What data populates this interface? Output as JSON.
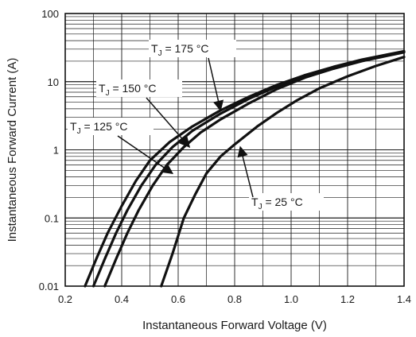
{
  "chart_data": {
    "type": "line",
    "title": "",
    "xlabel": "Instantaneous Forward Voltage (V)",
    "ylabel": "Instantaneous Forward Current (A)",
    "xlim": [
      0.2,
      1.4
    ],
    "ylim": [
      0.01,
      100
    ],
    "y_scale": "log",
    "grid": "on",
    "x_ticks": [
      "0.2",
      "0.4",
      "0.6",
      "0.8",
      "1.0",
      "1.2",
      "1.4"
    ],
    "y_ticks": [
      "0.01",
      "0.1",
      "1",
      "10",
      "100"
    ],
    "series": [
      {
        "name": "T_J = 175 °C",
        "x": [
          0.27,
          0.31,
          0.35,
          0.4,
          0.45,
          0.5,
          0.57,
          0.65,
          0.75,
          0.85,
          0.95,
          1.05,
          1.15,
          1.25,
          1.35,
          1.4
        ],
        "y": [
          0.01,
          0.025,
          0.06,
          0.15,
          0.35,
          0.7,
          1.3,
          2.2,
          3.8,
          6.0,
          9.0,
          12.5,
          16.5,
          21.0,
          25.5,
          28.0
        ]
      },
      {
        "name": "T_J = 150 °C",
        "x": [
          0.3,
          0.34,
          0.38,
          0.42,
          0.47,
          0.52,
          0.58,
          0.65,
          0.75,
          0.85,
          0.95,
          1.05,
          1.15,
          1.25,
          1.35,
          1.4
        ],
        "y": [
          0.01,
          0.025,
          0.06,
          0.13,
          0.3,
          0.6,
          1.1,
          1.9,
          3.4,
          5.6,
          8.5,
          12.0,
          16.0,
          20.5,
          25.0,
          27.5
        ]
      },
      {
        "name": "T_J = 125 °C",
        "x": [
          0.34,
          0.38,
          0.42,
          0.46,
          0.51,
          0.56,
          0.62,
          0.68,
          0.75,
          0.85,
          0.95,
          1.05,
          1.15,
          1.25,
          1.35,
          1.4
        ],
        "y": [
          0.01,
          0.025,
          0.06,
          0.13,
          0.3,
          0.6,
          1.1,
          1.8,
          2.8,
          4.8,
          7.8,
          11.5,
          15.5,
          20.0,
          24.5,
          27.0
        ]
      },
      {
        "name": "T_J = 25 °C",
        "x": [
          0.54,
          0.58,
          0.62,
          0.66,
          0.7,
          0.75,
          0.8,
          0.88,
          0.95,
          1.02,
          1.1,
          1.2,
          1.3,
          1.4
        ],
        "y": [
          0.01,
          0.03,
          0.1,
          0.22,
          0.45,
          0.8,
          1.2,
          2.2,
          3.5,
          5.3,
          8.0,
          12.0,
          17.0,
          23.0
        ]
      }
    ],
    "annotations": [
      {
        "id": "175",
        "pre": "T",
        "sub": "J",
        "post": " = 175 °C",
        "arrow_to": [
          0.75,
          3.8
        ]
      },
      {
        "id": "150",
        "pre": "T",
        "sub": "J",
        "post": " = 150 °C",
        "arrow_to": [
          0.64,
          1.1
        ]
      },
      {
        "id": "125",
        "pre": "T",
        "sub": "J",
        "post": " = 125 °C",
        "arrow_to": [
          0.58,
          0.45
        ]
      },
      {
        "id": "25",
        "pre": "T",
        "sub": "J",
        "post": " = 25 °C",
        "arrow_to": [
          0.82,
          1.1
        ]
      }
    ],
    "colors": {
      "line": "#111111",
      "grid": "#1a1a1a"
    }
  }
}
